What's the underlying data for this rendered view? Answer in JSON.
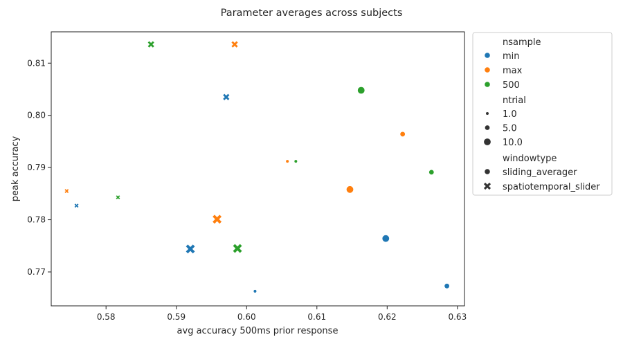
{
  "chart_data": {
    "type": "scatter",
    "title": "Parameter averages across subjects",
    "xlabel": "avg accuracy 500ms prior response",
    "ylabel": "peak accuracy",
    "xlim": [
      0.5722,
      0.631
    ],
    "ylim": [
      0.7635,
      0.816
    ],
    "xticks": [
      "0.58",
      "0.59",
      "0.60",
      "0.61",
      "0.62",
      "0.63"
    ],
    "yticks": [
      "0.77",
      "0.78",
      "0.79",
      "0.80",
      "0.81"
    ],
    "xtick_values": [
      0.58,
      0.59,
      0.6,
      0.61,
      0.62,
      0.63
    ],
    "ytick_values": [
      0.77,
      0.78,
      0.79,
      0.8,
      0.81
    ],
    "grid": false,
    "legend_placement": "outside-right",
    "colors": {
      "min": "#1f77b4",
      "max": "#ff7f0e",
      "500": "#2ca02c"
    },
    "points": [
      {
        "x": 0.6012,
        "y": 0.7663,
        "nsample": "min",
        "ntrial": 1.0,
        "windowtype": "sliding_averager"
      },
      {
        "x": 0.6285,
        "y": 0.7673,
        "nsample": "min",
        "ntrial": 5.0,
        "windowtype": "sliding_averager"
      },
      {
        "x": 0.6198,
        "y": 0.7764,
        "nsample": "min",
        "ntrial": 10.0,
        "windowtype": "sliding_averager"
      },
      {
        "x": 0.5758,
        "y": 0.7827,
        "nsample": "min",
        "ntrial": 1.0,
        "windowtype": "spatiotemporal_slider"
      },
      {
        "x": 0.5971,
        "y": 0.8035,
        "nsample": "min",
        "ntrial": 5.0,
        "windowtype": "spatiotemporal_slider"
      },
      {
        "x": 0.592,
        "y": 0.7744,
        "nsample": "min",
        "ntrial": 10.0,
        "windowtype": "spatiotemporal_slider"
      },
      {
        "x": 0.6058,
        "y": 0.7912,
        "nsample": "max",
        "ntrial": 1.0,
        "windowtype": "sliding_averager"
      },
      {
        "x": 0.6222,
        "y": 0.7964,
        "nsample": "max",
        "ntrial": 5.0,
        "windowtype": "sliding_averager"
      },
      {
        "x": 0.6147,
        "y": 0.7858,
        "nsample": "max",
        "ntrial": 10.0,
        "windowtype": "sliding_averager"
      },
      {
        "x": 0.5744,
        "y": 0.7855,
        "nsample": "max",
        "ntrial": 1.0,
        "windowtype": "spatiotemporal_slider"
      },
      {
        "x": 0.5983,
        "y": 0.8136,
        "nsample": "max",
        "ntrial": 5.0,
        "windowtype": "spatiotemporal_slider"
      },
      {
        "x": 0.5958,
        "y": 0.7801,
        "nsample": "max",
        "ntrial": 10.0,
        "windowtype": "spatiotemporal_slider"
      },
      {
        "x": 0.607,
        "y": 0.7912,
        "nsample": "500",
        "ntrial": 1.0,
        "windowtype": "sliding_averager"
      },
      {
        "x": 0.6263,
        "y": 0.7891,
        "nsample": "500",
        "ntrial": 5.0,
        "windowtype": "sliding_averager"
      },
      {
        "x": 0.6163,
        "y": 0.8048,
        "nsample": "500",
        "ntrial": 10.0,
        "windowtype": "sliding_averager"
      },
      {
        "x": 0.5817,
        "y": 0.7843,
        "nsample": "500",
        "ntrial": 1.0,
        "windowtype": "spatiotemporal_slider"
      },
      {
        "x": 0.5864,
        "y": 0.8136,
        "nsample": "500",
        "ntrial": 5.0,
        "windowtype": "spatiotemporal_slider"
      },
      {
        "x": 0.5987,
        "y": 0.7745,
        "nsample": "500",
        "ntrial": 10.0,
        "windowtype": "spatiotemporal_slider"
      }
    ]
  },
  "legend": {
    "hue_title": "nsample",
    "hue_items": [
      {
        "label": "min",
        "color": "#1f77b4"
      },
      {
        "label": "max",
        "color": "#ff7f0e"
      },
      {
        "label": "500",
        "color": "#2ca02c"
      }
    ],
    "size_title": "ntrial",
    "size_items": [
      {
        "label": "1.0",
        "value": 1.0
      },
      {
        "label": "5.0",
        "value": 5.0
      },
      {
        "label": "10.0",
        "value": 10.0
      }
    ],
    "style_title": "windowtype",
    "style_items": [
      {
        "label": "sliding_averager",
        "marker": "circle"
      },
      {
        "label": "spatiotemporal_slider",
        "marker": "x"
      }
    ]
  }
}
